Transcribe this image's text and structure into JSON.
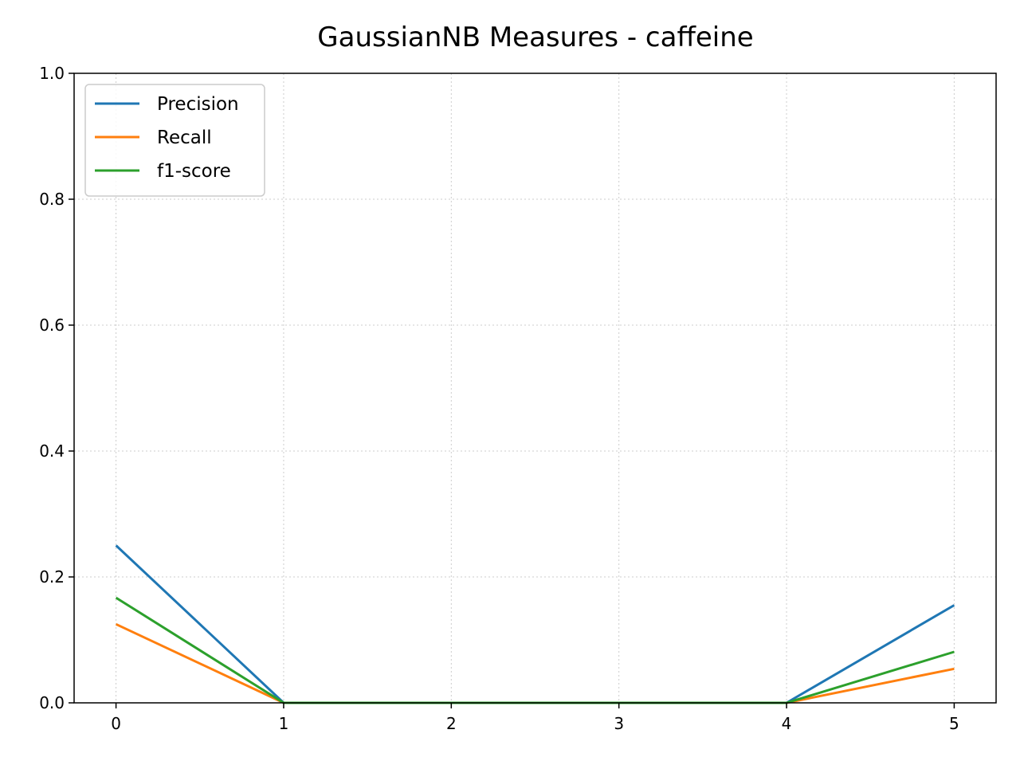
{
  "chart_data": {
    "type": "line",
    "title": "GaussianNB Measures - caffeine",
    "xlabel": "",
    "ylabel": "",
    "x": [
      0,
      1,
      2,
      3,
      4,
      5
    ],
    "xlim": [
      -0.25,
      5.25
    ],
    "ylim": [
      0,
      1
    ],
    "xticks": [
      "0",
      "1",
      "2",
      "3",
      "4",
      "5"
    ],
    "yticks": [
      "0.0",
      "0.2",
      "0.4",
      "0.6",
      "0.8",
      "1.0"
    ],
    "grid": true,
    "legend_position": "top-left",
    "series": [
      {
        "name": "Precision",
        "color": "#1f77b4",
        "values": [
          0.25,
          0.0,
          0.0,
          0.0,
          0.0,
          0.155
        ]
      },
      {
        "name": "Recall",
        "color": "#ff7f0e",
        "values": [
          0.125,
          0.0,
          0.0,
          0.0,
          0.0,
          0.054
        ]
      },
      {
        "name": "f1-score",
        "color": "#2ca02c",
        "values": [
          0.167,
          0.0,
          0.0,
          0.0,
          0.0,
          0.081
        ]
      }
    ]
  }
}
